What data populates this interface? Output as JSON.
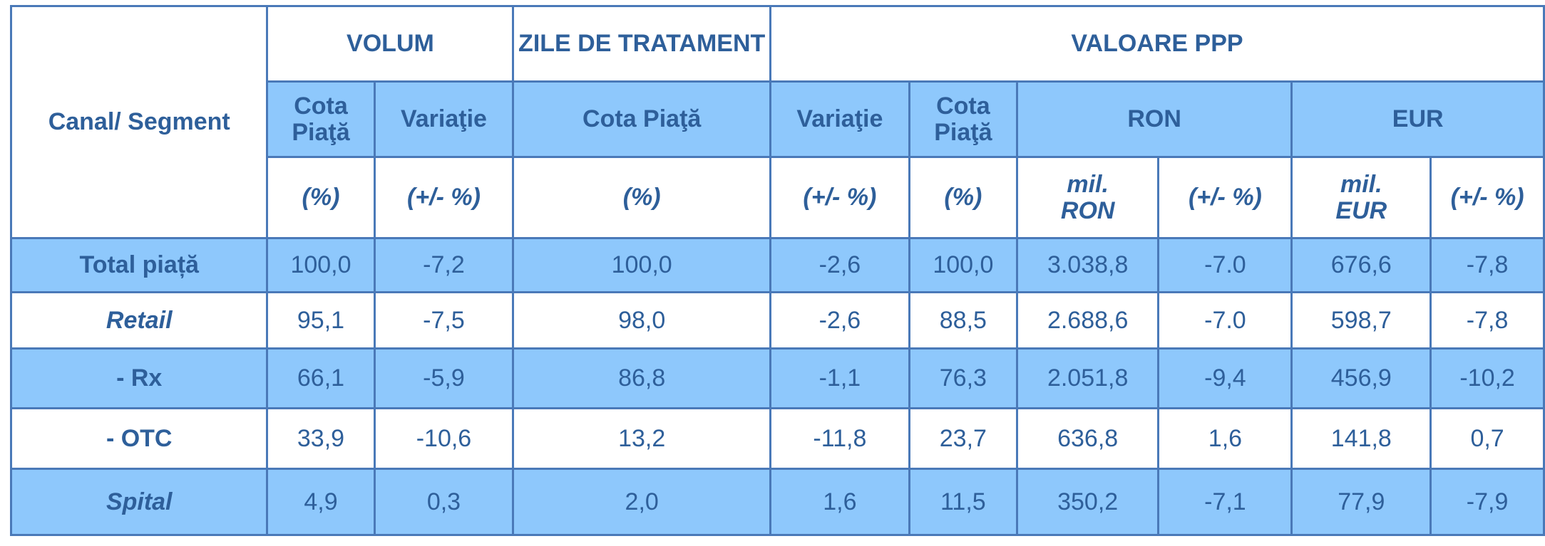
{
  "table": {
    "corner_label": "Canal/ Segment",
    "groups": {
      "volum": "VOLUM",
      "zile": "ZILE DE TRATAMENT",
      "valoare": "VALOARE PPP"
    },
    "subheaders": {
      "volum_cota": "Cota Piaţă",
      "volum_variatie": "Variaţie",
      "zile_cota": "Cota Piaţă",
      "valoare_variatie": "Variaţie",
      "valoare_cota": "Cota Piaţă",
      "ron": "RON",
      "eur": "EUR"
    },
    "units": [
      "(%)",
      "(+/- %)",
      "(%)",
      "(+/- %)",
      "(%)",
      "mil. RON",
      "(+/- %)",
      "mil. EUR",
      "(+/- %)"
    ],
    "rows": [
      {
        "label": "Total piață",
        "italic": false,
        "values": [
          "100,0",
          "-7,2",
          "100,0",
          "-2,6",
          "100,0",
          "3.038,8",
          "-7.0",
          "676,6",
          "-7,8"
        ]
      },
      {
        "label": "Retail",
        "italic": true,
        "values": [
          "95,1",
          "-7,5",
          "98,0",
          "-2,6",
          "88,5",
          "2.688,6",
          "-7.0",
          "598,7",
          "-7,8"
        ]
      },
      {
        "label": "- Rx",
        "italic": false,
        "values": [
          "66,1",
          "-5,9",
          "86,8",
          "-1,1",
          "76,3",
          "2.051,8",
          "-9,4",
          "456,9",
          "-10,2"
        ]
      },
      {
        "label": "- OTC",
        "italic": false,
        "values": [
          "33,9",
          "-10,6",
          "13,2",
          "-11,8",
          "23,7",
          "636,8",
          "1,6",
          "141,8",
          "0,7"
        ]
      },
      {
        "label": "Spital",
        "italic": true,
        "values": [
          "4,9",
          "0,3",
          "2,0",
          "1,6",
          "11,5",
          "350,2",
          "-7,1",
          "77,9",
          "-7,9"
        ]
      }
    ]
  }
}
